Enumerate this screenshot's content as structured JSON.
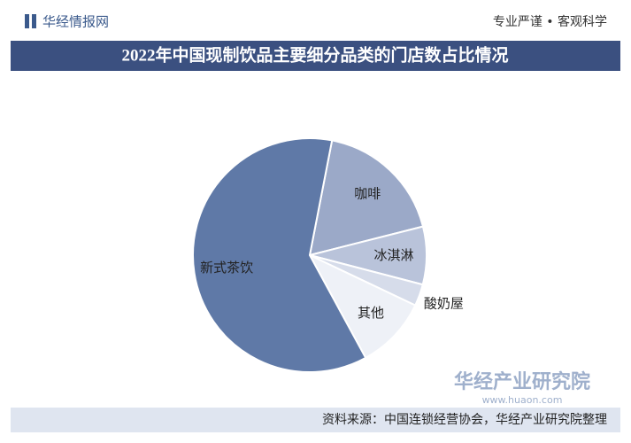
{
  "header": {
    "brand": "华经情报网",
    "slogan": "专业严谨 • 客观科学"
  },
  "chart_data": {
    "type": "pie",
    "title": "2022年中国现制饮品主要细分品类的门店数占比情况",
    "categories": [
      "咖啡",
      "冰淇淋",
      "酸奶屋",
      "其他",
      "新式茶饮"
    ],
    "values": [
      18,
      8,
      3,
      10,
      61
    ],
    "colors": [
      "#9ba9c8",
      "#b9c3da",
      "#d6dcea",
      "#eef1f7",
      "#5f79a7"
    ]
  },
  "source": "资料来源：中国连锁经营协会，华经产业研究院整理",
  "watermark": {
    "name": "华经产业研究院",
    "url": "www.huaon.com"
  }
}
